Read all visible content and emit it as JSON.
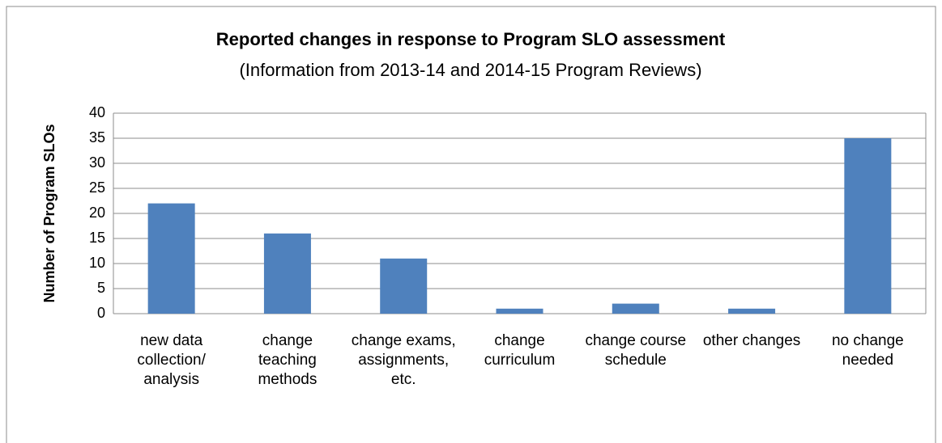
{
  "chart_data": {
    "type": "bar",
    "title": "Reported changes in response to Program SLO assessment",
    "subtitle": "(Information from 2013-14 and 2014-15 Program Reviews)",
    "y_label": "Number of Program SLOs",
    "categories": [
      "new data collection/ analysis",
      "change teaching methods",
      "change exams, assignments, etc.",
      "change curriculum",
      "change course schedule",
      "other changes",
      "no change needed"
    ],
    "values": [
      22,
      16,
      11,
      1,
      2,
      1,
      35
    ],
    "color": "#4f81bd",
    "ylim": [
      0,
      40
    ],
    "yticks": [
      0,
      5,
      10,
      15,
      20,
      25,
      30,
      35,
      40
    ],
    "grid": true
  }
}
